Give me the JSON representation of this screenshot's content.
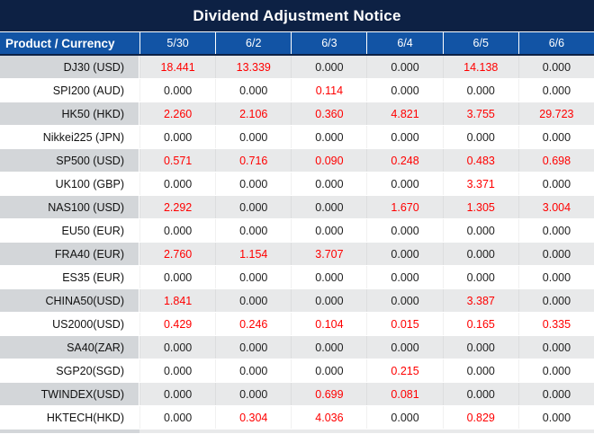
{
  "title": "Dividend Adjustment Notice",
  "colors": {
    "title_bg": "#0d2144",
    "header_bg": "#1254a5",
    "stripe_product": "#d3d6d9",
    "stripe_values": "#e8e9ea",
    "value_nonzero": "#ff0000",
    "value_zero": "#1f1f1f",
    "header_text": "#ffffff"
  },
  "chart_data": {
    "type": "table",
    "title": "Dividend Adjustment Notice",
    "columns": [
      "Product / Currency",
      "5/30",
      "6/2",
      "6/3",
      "6/4",
      "6/5",
      "6/6"
    ],
    "value_color_rule": "non-zero values shown in red, zero values in black",
    "rows": [
      {
        "product": "DJ30 (USD)",
        "values": [
          "18.441",
          "13.339",
          "0.000",
          "0.000",
          "14.138",
          "0.000"
        ]
      },
      {
        "product": "SPI200 (AUD)",
        "values": [
          "0.000",
          "0.000",
          "0.114",
          "0.000",
          "0.000",
          "0.000"
        ]
      },
      {
        "product": "HK50 (HKD)",
        "values": [
          "2.260",
          "2.106",
          "0.360",
          "4.821",
          "3.755",
          "29.723"
        ]
      },
      {
        "product": "Nikkei225 (JPN)",
        "values": [
          "0.000",
          "0.000",
          "0.000",
          "0.000",
          "0.000",
          "0.000"
        ]
      },
      {
        "product": "SP500 (USD)",
        "values": [
          "0.571",
          "0.716",
          "0.090",
          "0.248",
          "0.483",
          "0.698"
        ]
      },
      {
        "product": "UK100 (GBP)",
        "values": [
          "0.000",
          "0.000",
          "0.000",
          "0.000",
          "3.371",
          "0.000"
        ]
      },
      {
        "product": "NAS100 (USD)",
        "values": [
          "2.292",
          "0.000",
          "0.000",
          "1.670",
          "1.305",
          "3.004"
        ]
      },
      {
        "product": "EU50 (EUR)",
        "values": [
          "0.000",
          "0.000",
          "0.000",
          "0.000",
          "0.000",
          "0.000"
        ]
      },
      {
        "product": "FRA40 (EUR)",
        "values": [
          "2.760",
          "1.154",
          "3.707",
          "0.000",
          "0.000",
          "0.000"
        ]
      },
      {
        "product": "ES35 (EUR)",
        "values": [
          "0.000",
          "0.000",
          "0.000",
          "0.000",
          "0.000",
          "0.000"
        ]
      },
      {
        "product": "CHINA50(USD)",
        "values": [
          "1.841",
          "0.000",
          "0.000",
          "0.000",
          "3.387",
          "0.000"
        ]
      },
      {
        "product": "US2000(USD)",
        "values": [
          "0.429",
          "0.246",
          "0.104",
          "0.015",
          "0.165",
          "0.335"
        ]
      },
      {
        "product": "SA40(ZAR)",
        "values": [
          "0.000",
          "0.000",
          "0.000",
          "0.000",
          "0.000",
          "0.000"
        ]
      },
      {
        "product": "SGP20(SGD)",
        "values": [
          "0.000",
          "0.000",
          "0.000",
          "0.215",
          "0.000",
          "0.000"
        ]
      },
      {
        "product": "TWINDEX(USD)",
        "values": [
          "0.000",
          "0.000",
          "0.699",
          "0.081",
          "0.000",
          "0.000"
        ]
      },
      {
        "product": "HKTECH(HKD)",
        "values": [
          "0.000",
          "0.304",
          "4.036",
          "0.000",
          "0.829",
          "0.000"
        ]
      }
    ]
  }
}
